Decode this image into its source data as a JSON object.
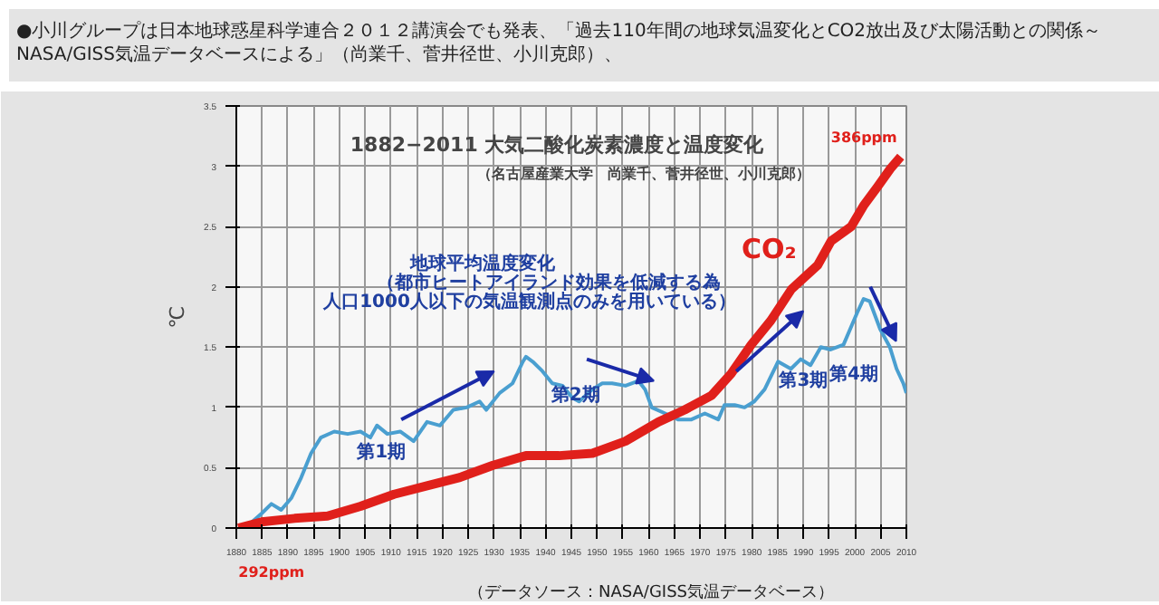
{
  "chart_data": {
    "type": "line",
    "title": "1882−2011 大気二酸化炭素濃度と温度変化",
    "subtitle": "（名古屋産業大学　尚業千、菅井径世、小川克郎）",
    "ylabel": "℃",
    "xlim": [
      1880,
      2010
    ],
    "xticks": [
      1880,
      1885,
      1890,
      1895,
      1900,
      1905,
      1910,
      1915,
      1920,
      1925,
      1930,
      1935,
      1940,
      1945,
      1950,
      1955,
      1960,
      1965,
      1970,
      1975,
      1980,
      1985,
      1990,
      1995,
      2000,
      2005,
      2010
    ],
    "ylim": [
      0,
      3.5
    ],
    "yticks": [
      0,
      0.5,
      1,
      1.5,
      2,
      2.5,
      3,
      3.5
    ],
    "grid": true,
    "line_style": "solid",
    "series": [
      {
        "color": "#4a9fd0",
        "x": [
          1881.7,
          1884.9,
          1886.8,
          1888.7,
          1890.7,
          1892.6,
          1894.5,
          1896.4,
          1899,
          1901.6,
          1904.1,
          1906,
          1907.3,
          1909.3,
          1911.8,
          1914.4,
          1917,
          1919.5,
          1922.1,
          1924.7,
          1927.2,
          1928.5,
          1931.1,
          1933.6,
          1935.6,
          1936.2,
          1937.5,
          1939.4,
          1941.3,
          1943.3,
          1945.2,
          1946.5,
          1949.1,
          1951,
          1952.9,
          1955.5,
          1958,
          1959.3,
          1960.6,
          1963.2,
          1965.7,
          1968.3,
          1970.9,
          1973.5,
          1974.7,
          1976.7,
          1978.6,
          1980.5,
          1982.5,
          1985.1,
          1987.6,
          1989.5,
          1991.4,
          1993.4,
          1995.3,
          1997.8,
          2000.4,
          2001.7,
          2002.9,
          2004.9,
          2006.8,
          2008.1,
          2009.4,
          2010
        ],
        "values": [
          0,
          0.12,
          0.2,
          0.15,
          0.25,
          0.42,
          0.62,
          0.75,
          0.8,
          0.78,
          0.8,
          0.75,
          0.85,
          0.78,
          0.8,
          0.72,
          0.88,
          0.85,
          0.98,
          1.0,
          1.05,
          0.98,
          1.12,
          1.2,
          1.38,
          1.42,
          1.38,
          1.3,
          1.2,
          1.18,
          1.08,
          1.05,
          1.15,
          1.2,
          1.2,
          1.18,
          1.22,
          1.15,
          1.0,
          0.95,
          0.9,
          0.9,
          0.95,
          0.9,
          1.02,
          1.02,
          1.0,
          1.05,
          1.15,
          1.38,
          1.32,
          1.4,
          1.35,
          1.5,
          1.48,
          1.52,
          1.78,
          1.9,
          1.88,
          1.65,
          1.5,
          1.32,
          1.2,
          1.12
        ]
      },
      {
        "name": "CO₂",
        "color": "#e0201b",
        "x": [
          1880.4,
          1884.9,
          1891.3,
          1897.7,
          1904.1,
          1910.6,
          1917,
          1923.4,
          1929.8,
          1936.2,
          1942.6,
          1949.1,
          1955.5,
          1961.9,
          1967,
          1972.2,
          1976,
          1979.9,
          1983.7,
          1987.7,
          1992.8,
          1995.4,
          1999.3,
          2001.8,
          2004.4,
          2006.9,
          2008.9
        ],
        "values": [
          0,
          0.05,
          0.08,
          0.1,
          0.18,
          0.28,
          0.35,
          0.42,
          0.52,
          0.6,
          0.6,
          0.62,
          0.72,
          0.88,
          0.98,
          1.1,
          1.28,
          1.52,
          1.72,
          1.98,
          2.18,
          2.38,
          2.5,
          2.68,
          2.83,
          2.98,
          3.08
        ]
      }
    ],
    "annotations": [
      "●小川グループは日本地球惑星科学連合２０１２講演会でも発表、「過去110年間の地球気温変化とCO2放出及び太陽活動との関係～NASA/GISS気温データベースによる」（尚業千、菅井径世、小川克郎）、",
      "地球平均温度変化",
      "（都市ヒートアイランド効果を低減する為",
      "人口1000人以下の気温観測点のみを用いている）",
      "（データソース：NASA/GISS気温データベース）",
      "第1期",
      "第2期",
      "第3期",
      "第4期",
      {
        "text": "292ppm",
        "x": 1880.4,
        "y": 0
      },
      {
        "text": "386ppm",
        "x": 2008.9,
        "y": 3.08
      }
    ]
  }
}
